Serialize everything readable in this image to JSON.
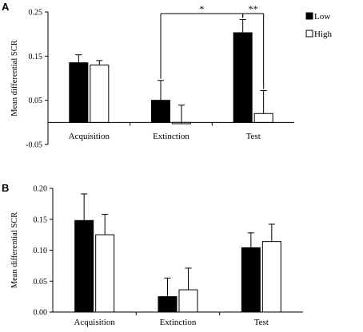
{
  "chart_data": [
    {
      "type": "bar",
      "panel": "A",
      "title": "",
      "xlabel": "",
      "ylabel": "Mean differential SCR",
      "categories": [
        "Acquisition",
        "Extinction",
        "Test"
      ],
      "series": [
        {
          "name": "Low",
          "color": "#000000",
          "values": [
            0.135,
            0.05,
            0.203
          ],
          "errors": [
            0.018,
            0.045,
            0.03
          ]
        },
        {
          "name": "High",
          "color": "#ffffff",
          "values": [
            0.13,
            -0.003,
            0.02
          ],
          "errors": [
            0.01,
            0.042,
            0.052
          ]
        }
      ],
      "ylim": [
        -0.05,
        0.25
      ],
      "yticks": [
        "-0.05",
        "0.05",
        "0.15",
        "0.25"
      ],
      "legend_position": "top-right",
      "grid": false,
      "annotations": [
        {
          "text": "*",
          "from": "Extinction-Low",
          "to": "Test-Low"
        },
        {
          "text": "**",
          "from": "Test-Low",
          "to": "Test-High"
        }
      ]
    },
    {
      "type": "bar",
      "panel": "B",
      "title": "",
      "xlabel": "",
      "ylabel": "Mean differential SCR",
      "categories": [
        "Acquisition",
        "Extinction",
        "Test"
      ],
      "series": [
        {
          "name": "Low",
          "color": "#000000",
          "values": [
            0.148,
            0.025,
            0.104
          ],
          "errors": [
            0.043,
            0.03,
            0.024
          ]
        },
        {
          "name": "High",
          "color": "#ffffff",
          "values": [
            0.125,
            0.036,
            0.114
          ],
          "errors": [
            0.033,
            0.035,
            0.028
          ]
        }
      ],
      "ylim": [
        0.0,
        0.2
      ],
      "yticks": [
        "0.00",
        "0.05",
        "0.10",
        "0.15",
        "0.20"
      ],
      "grid": false
    }
  ]
}
